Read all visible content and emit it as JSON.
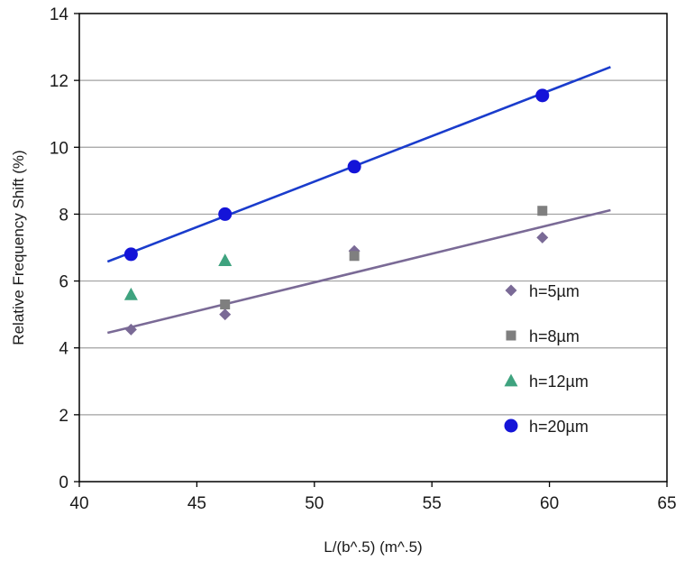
{
  "chart_data": {
    "type": "scatter",
    "title": "",
    "xlabel": "L/(b^.5) (m^.5)",
    "ylabel": "Relative Frequency Shift (%)",
    "xlim": [
      40,
      65
    ],
    "ylim": [
      0,
      14
    ],
    "xticks": [
      40,
      45,
      50,
      55,
      60,
      65
    ],
    "yticks": [
      0,
      2,
      4,
      6,
      8,
      10,
      12,
      14
    ],
    "grid": "horizontal",
    "legend_position": "right",
    "series": [
      {
        "name": "h=5µm",
        "marker": "diamond",
        "color": "#7a6a96",
        "x": [
          42.2,
          46.2,
          51.7,
          59.7
        ],
        "y": [
          4.55,
          5.0,
          6.9,
          7.3
        ]
      },
      {
        "name": "h=8µm",
        "marker": "square",
        "color": "#7f7f7f",
        "x": [
          46.2,
          51.7,
          59.7
        ],
        "y": [
          5.3,
          6.75,
          8.1
        ]
      },
      {
        "name": "h=12µm",
        "marker": "triangle",
        "color": "#3fa37f",
        "x": [
          42.2,
          46.2
        ],
        "y": [
          5.6,
          6.62
        ]
      },
      {
        "name": "h=20µm",
        "marker": "circle",
        "color": "#1414d8",
        "x": [
          42.2,
          46.2,
          51.7,
          59.7
        ],
        "y": [
          6.8,
          8.0,
          9.42,
          11.55
        ]
      }
    ],
    "trendlines": [
      {
        "color": "#7a6a96",
        "x": [
          41.2,
          62.6
        ],
        "y": [
          4.45,
          8.12
        ]
      },
      {
        "color": "#1a3ccc",
        "x": [
          41.2,
          62.6
        ],
        "y": [
          6.58,
          12.4
        ]
      }
    ]
  }
}
